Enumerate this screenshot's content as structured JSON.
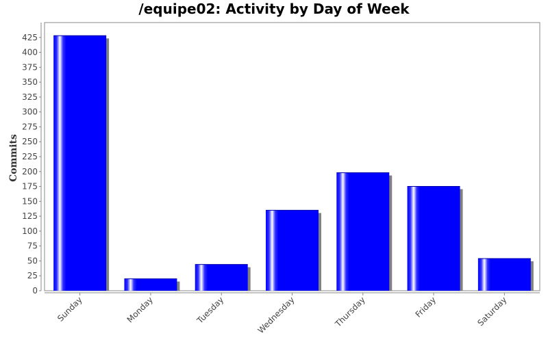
{
  "chart_data": {
    "type": "bar",
    "title": "/equipe02: Activity by Day of Week",
    "xlabel": "",
    "ylabel": "Commits",
    "categories": [
      "Sunday",
      "Monday",
      "Tuesday",
      "Wednesday",
      "Thursday",
      "Friday",
      "Saturday"
    ],
    "values": [
      428,
      20,
      44,
      135,
      198,
      175,
      54
    ],
    "ylim": [
      0,
      450
    ],
    "yticks": [
      0,
      25,
      50,
      75,
      100,
      125,
      150,
      175,
      200,
      225,
      250,
      275,
      300,
      325,
      350,
      375,
      400,
      425
    ],
    "grid": false,
    "legend": "none",
    "colors": {
      "bar": "#0000ff",
      "bar_highlight": "#ffffff",
      "shadow": "#808080",
      "axis": "#888888",
      "title": "#000000"
    }
  }
}
